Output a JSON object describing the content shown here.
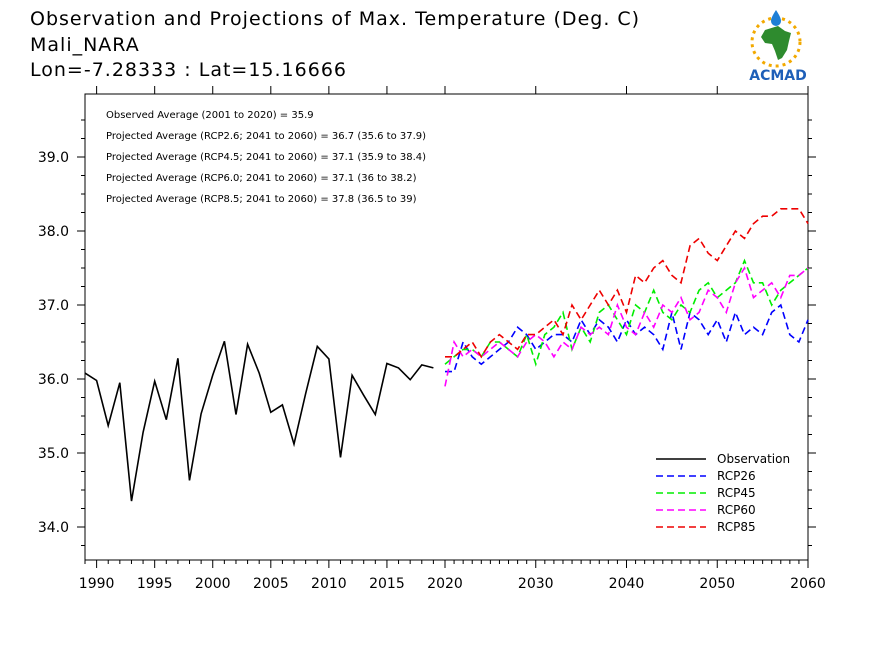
{
  "header": {
    "title": "Observation and Projections of Max. Temperature (Deg. C)",
    "location": "Mali_NARA",
    "coords": "Lon=-7.28333 : Lat=15.16666"
  },
  "logo": {
    "text": "ACMAD",
    "icon": "africa-map-sun-logo"
  },
  "colors": {
    "observation": "#000000",
    "rcp26": "#0000ff",
    "rcp45": "#00ee00",
    "rcp60": "#ff00ff",
    "rcp85": "#ee0000"
  },
  "chart_data": {
    "type": "line",
    "xlim": [
      1989,
      2060
    ],
    "ylim": [
      33.5,
      39.7
    ],
    "x_ticks": [
      1990,
      1995,
      2000,
      2005,
      2010,
      2015,
      2020,
      2030,
      2040,
      2050,
      2060
    ],
    "y_ticks": [
      34.0,
      35.0,
      36.0,
      37.0,
      38.0,
      39.0
    ],
    "y_tick_labels": [
      "34.0",
      "35.0",
      "36.0",
      "37.0",
      "38.0",
      "39.0"
    ],
    "annotations": [
      "Observed Average (2001 to 2020) = 35.9",
      "Projected Average (RCP2.6; 2041 to 2060) = 36.7 (35.6 to 37.9)",
      "Projected Average (RCP4.5; 2041 to 2060) = 37.1 (35.9 to 38.4)",
      "Projected Average (RCP6.0; 2041 to 2060) = 37.1 (36 to 38.2)",
      "Projected Average (RCP8.5; 2041 to 2060) = 37.8 (36.5 to 39)"
    ],
    "legend_position": "bottom-right",
    "series": [
      {
        "name": "Observation",
        "key": "observation",
        "style": "solid",
        "x": [
          1989,
          1990,
          1991,
          1992,
          1993,
          1994,
          1995,
          1996,
          1997,
          1998,
          1999,
          2000,
          2001,
          2002,
          2003,
          2004,
          2005,
          2006,
          2007,
          2008,
          2009,
          2010,
          2011,
          2012,
          2013,
          2014,
          2015,
          2016,
          2017,
          2018,
          2019
        ],
        "y": [
          36.08,
          35.98,
          35.37,
          35.95,
          34.35,
          35.28,
          35.97,
          35.45,
          36.28,
          34.63,
          35.53,
          36.05,
          36.51,
          35.52,
          36.47,
          36.08,
          35.55,
          35.65,
          35.12,
          35.8,
          36.44,
          36.27,
          34.94,
          36.05,
          35.78,
          35.52,
          36.21,
          36.15,
          35.99,
          36.19,
          36.15
        ]
      },
      {
        "name": "RCP26",
        "key": "rcp26",
        "style": "dashed",
        "x": [
          2020,
          2021,
          2022,
          2023,
          2024,
          2025,
          2026,
          2027,
          2028,
          2029,
          2030,
          2031,
          2032,
          2033,
          2034,
          2035,
          2036,
          2037,
          2038,
          2039,
          2040,
          2041,
          2042,
          2043,
          2044,
          2045,
          2046,
          2047,
          2048,
          2049,
          2050,
          2051,
          2052,
          2053,
          2054,
          2055,
          2056,
          2057,
          2058,
          2059,
          2060
        ],
        "y": [
          36.1,
          36.1,
          36.5,
          36.3,
          36.2,
          36.3,
          36.4,
          36.5,
          36.7,
          36.6,
          36.4,
          36.5,
          36.6,
          36.6,
          36.5,
          36.8,
          36.6,
          36.8,
          36.7,
          36.5,
          36.8,
          36.6,
          36.7,
          36.6,
          36.4,
          36.9,
          36.4,
          36.9,
          36.8,
          36.6,
          36.8,
          36.5,
          36.9,
          36.6,
          36.7,
          36.6,
          36.9,
          37.0,
          36.6,
          36.5,
          36.8
        ]
      },
      {
        "name": "RCP45",
        "key": "rcp45",
        "style": "dashed",
        "x": [
          2020,
          2021,
          2022,
          2023,
          2024,
          2025,
          2026,
          2027,
          2028,
          2029,
          2030,
          2031,
          2032,
          2033,
          2034,
          2035,
          2036,
          2037,
          2038,
          2039,
          2040,
          2041,
          2042,
          2043,
          2044,
          2045,
          2046,
          2047,
          2048,
          2049,
          2050,
          2051,
          2052,
          2053,
          2054,
          2055,
          2056,
          2057,
          2058,
          2059,
          2060
        ],
        "y": [
          36.2,
          36.3,
          36.4,
          36.4,
          36.3,
          36.5,
          36.5,
          36.4,
          36.3,
          36.6,
          36.2,
          36.6,
          36.7,
          36.9,
          36.4,
          36.7,
          36.5,
          36.9,
          37.0,
          36.8,
          36.6,
          37.0,
          36.9,
          37.2,
          36.9,
          36.8,
          37.0,
          36.9,
          37.2,
          37.3,
          37.1,
          37.2,
          37.3,
          37.6,
          37.3,
          37.3,
          37.0,
          37.2,
          37.3,
          37.4,
          37.5
        ]
      },
      {
        "name": "RCP60",
        "key": "rcp60",
        "style": "dashed",
        "x": [
          2020,
          2021,
          2022,
          2023,
          2024,
          2025,
          2026,
          2027,
          2028,
          2029,
          2030,
          2031,
          2032,
          2033,
          2034,
          2035,
          2036,
          2037,
          2038,
          2039,
          2040,
          2041,
          2042,
          2043,
          2044,
          2045,
          2046,
          2047,
          2048,
          2049,
          2050,
          2051,
          2052,
          2053,
          2054,
          2055,
          2056,
          2057,
          2058,
          2059,
          2060
        ],
        "y": [
          35.9,
          36.5,
          36.3,
          36.4,
          36.3,
          36.4,
          36.5,
          36.4,
          36.3,
          36.5,
          36.6,
          36.5,
          36.3,
          36.5,
          36.4,
          36.7,
          36.6,
          36.7,
          36.6,
          37.0,
          36.7,
          36.6,
          36.9,
          36.7,
          37.0,
          36.9,
          37.1,
          36.8,
          36.9,
          37.2,
          37.1,
          36.9,
          37.3,
          37.5,
          37.1,
          37.2,
          37.3,
          37.1,
          37.4,
          37.4,
          37.5
        ]
      },
      {
        "name": "RCP85",
        "key": "rcp85",
        "style": "dashed",
        "x": [
          2020,
          2021,
          2022,
          2023,
          2024,
          2025,
          2026,
          2027,
          2028,
          2029,
          2030,
          2031,
          2032,
          2033,
          2034,
          2035,
          2036,
          2037,
          2038,
          2039,
          2040,
          2041,
          2042,
          2043,
          2044,
          2045,
          2046,
          2047,
          2048,
          2049,
          2050,
          2051,
          2052,
          2053,
          2054,
          2055,
          2056,
          2057,
          2058,
          2059,
          2060
        ],
        "y": [
          36.3,
          36.3,
          36.4,
          36.5,
          36.3,
          36.5,
          36.6,
          36.5,
          36.4,
          36.6,
          36.6,
          36.7,
          36.8,
          36.6,
          37.0,
          36.8,
          37.0,
          37.2,
          37.0,
          37.2,
          36.9,
          37.4,
          37.3,
          37.5,
          37.6,
          37.4,
          37.3,
          37.8,
          37.9,
          37.7,
          37.6,
          37.8,
          38.0,
          37.9,
          38.1,
          38.2,
          38.2,
          38.3,
          38.3,
          38.3,
          38.1
        ]
      }
    ]
  }
}
